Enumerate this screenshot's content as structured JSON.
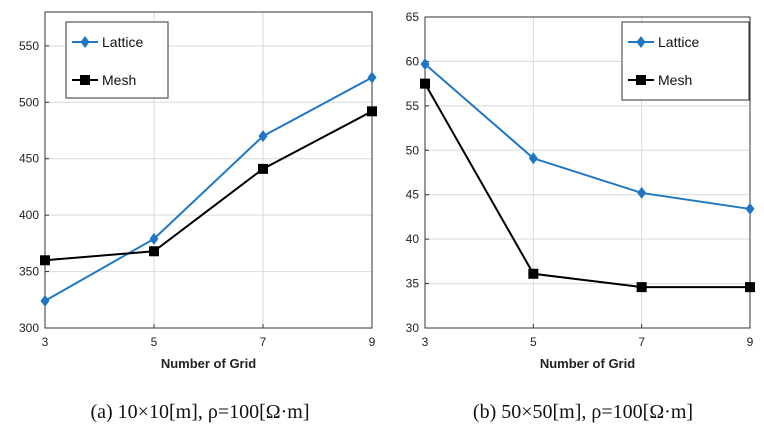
{
  "colors": {
    "lattice": "#1f77c4",
    "mesh": "#000000",
    "grid": "#d9d9d9",
    "axis": "#333333"
  },
  "chart_data": [
    {
      "type": "line",
      "caption": "(a)  10×10[m],  ρ=100[Ω·m]",
      "xlabel": "Number of Grid",
      "ylabel": "",
      "x": [
        3,
        5,
        7,
        9
      ],
      "xticks": [
        "3",
        "5",
        "7",
        "9"
      ],
      "xlim": [
        3,
        9
      ],
      "ylim": [
        300,
        580
      ],
      "yticks": [
        "300",
        "350",
        "400",
        "450",
        "500",
        "550"
      ],
      "ytick_values": [
        300,
        350,
        400,
        450,
        500,
        550
      ],
      "grid": true,
      "legend_position": "top-left",
      "series": [
        {
          "name": "Lattice",
          "marker": "diamond",
          "color": "#1f77c4",
          "values": [
            324,
            379,
            470,
            522
          ]
        },
        {
          "name": "Mesh",
          "marker": "square",
          "color": "#000000",
          "values": [
            360,
            368,
            441,
            492
          ]
        }
      ]
    },
    {
      "type": "line",
      "caption": "(b)  50×50[m],  ρ=100[Ω·m]",
      "xlabel": "Number of Grid",
      "ylabel": "",
      "x": [
        3,
        5,
        7,
        9
      ],
      "xticks": [
        "3",
        "5",
        "7",
        "9"
      ],
      "xlim": [
        3,
        9
      ],
      "ylim": [
        30,
        65
      ],
      "yticks": [
        "30",
        "35",
        "40",
        "45",
        "50",
        "55",
        "60",
        "65"
      ],
      "ytick_values": [
        30,
        35,
        40,
        45,
        50,
        55,
        60,
        65
      ],
      "grid": true,
      "legend_position": "top-right",
      "series": [
        {
          "name": "Lattice",
          "marker": "diamond",
          "color": "#1f77c4",
          "values": [
            59.7,
            49.1,
            45.2,
            43.4
          ]
        },
        {
          "name": "Mesh",
          "marker": "square",
          "color": "#000000",
          "values": [
            57.5,
            36.1,
            34.6,
            34.6
          ]
        }
      ]
    }
  ]
}
